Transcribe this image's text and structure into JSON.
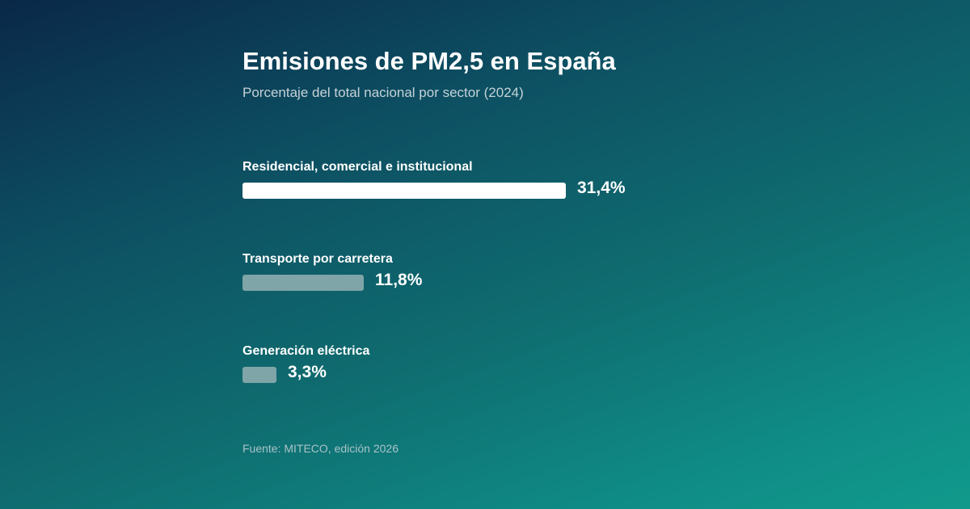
{
  "chart_data": {
    "type": "bar",
    "orientation": "horizontal",
    "title": "Emisiones de PM2,5 en España",
    "subtitle": "Porcentaje del total nacional por sector (2024)",
    "categories": [
      "Residencial, comercial e institucional",
      "Transporte por carretera",
      "Generación eléctrica"
    ],
    "values": [
      31.4,
      11.8,
      3.3
    ],
    "value_labels": [
      "31,4%",
      "11,8%",
      "3,3%"
    ],
    "unit": "%",
    "grid": false,
    "highlight_color": "#ffffff",
    "bar_color": "#7fa5a8"
  },
  "footer": {
    "source": "Fuente: MITECO, edición 2026"
  }
}
